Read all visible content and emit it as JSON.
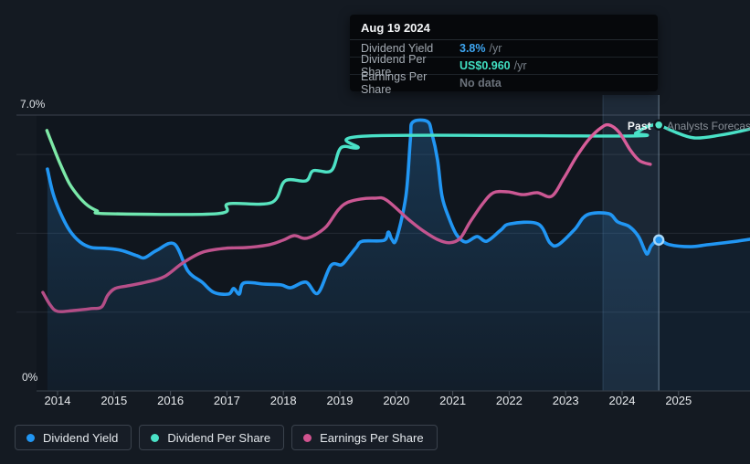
{
  "tooltip": {
    "date": "Aug 19 2024",
    "rows": [
      {
        "label": "Dividend Yield",
        "value": "3.8%",
        "suffix": "/yr",
        "color": "#3ea6f2"
      },
      {
        "label": "Dividend Per Share",
        "value": "US$0.960",
        "suffix": "/yr",
        "color": "#41e0c2"
      },
      {
        "label": "Earnings Per Share",
        "value": "No data",
        "suffix": "",
        "color": "#6b727b"
      }
    ]
  },
  "legend": {
    "items": [
      {
        "label": "Dividend Yield",
        "color": "#2196f3"
      },
      {
        "label": "Dividend Per Share",
        "color": "#4ae1c6"
      },
      {
        "label": "Earnings Per Share",
        "color": "#d1538f"
      }
    ]
  },
  "chart_data": {
    "type": "line",
    "title": "",
    "past_label": "Past",
    "forecast_label": "Analysts Forecasts",
    "x_ticks": [
      2014,
      2015,
      2016,
      2017,
      2018,
      2019,
      2020,
      2021,
      2022,
      2023,
      2024,
      2025
    ],
    "ylim": [
      0,
      7
    ],
    "y_axis_labels": [
      {
        "value": 7.0,
        "label": "7.0%"
      },
      {
        "value": 0,
        "label": "0%"
      }
    ],
    "y_gridlines": [
      2,
      4,
      6,
      7
    ],
    "grid": true,
    "legend_position": "bottom-left",
    "past_divider_x": 2024.65,
    "highlight_band": {
      "start": 2023.66,
      "end": 2024.65
    },
    "series": [
      {
        "name": "Dividend Yield",
        "unit": "%",
        "color": "#2196f3",
        "style": "area",
        "points": [
          [
            2013.82,
            5.63
          ],
          [
            2013.92,
            5.01
          ],
          [
            2014.05,
            4.52
          ],
          [
            2014.21,
            4.08
          ],
          [
            2014.4,
            3.78
          ],
          [
            2014.6,
            3.64
          ],
          [
            2014.84,
            3.62
          ],
          [
            2015.12,
            3.57
          ],
          [
            2015.41,
            3.43
          ],
          [
            2015.54,
            3.38
          ],
          [
            2015.76,
            3.57
          ],
          [
            2016.07,
            3.73
          ],
          [
            2016.31,
            3.04
          ],
          [
            2016.56,
            2.76
          ],
          [
            2016.77,
            2.5
          ],
          [
            2017.03,
            2.46
          ],
          [
            2017.12,
            2.6
          ],
          [
            2017.22,
            2.46
          ],
          [
            2017.3,
            2.74
          ],
          [
            2017.67,
            2.71
          ],
          [
            2017.96,
            2.69
          ],
          [
            2018.13,
            2.62
          ],
          [
            2018.4,
            2.76
          ],
          [
            2018.61,
            2.48
          ],
          [
            2018.84,
            3.18
          ],
          [
            2019.03,
            3.2
          ],
          [
            2019.16,
            3.41
          ],
          [
            2019.29,
            3.64
          ],
          [
            2019.4,
            3.8
          ],
          [
            2019.78,
            3.82
          ],
          [
            2019.86,
            4.03
          ],
          [
            2019.92,
            3.85
          ],
          [
            2020.0,
            3.85
          ],
          [
            2020.17,
            4.94
          ],
          [
            2020.25,
            6.4
          ],
          [
            2020.29,
            6.82
          ],
          [
            2020.55,
            6.84
          ],
          [
            2020.63,
            6.54
          ],
          [
            2020.73,
            5.87
          ],
          [
            2020.81,
            4.94
          ],
          [
            2020.93,
            4.4
          ],
          [
            2021.07,
            3.96
          ],
          [
            2021.23,
            3.78
          ],
          [
            2021.43,
            3.92
          ],
          [
            2021.6,
            3.8
          ],
          [
            2021.85,
            4.08
          ],
          [
            2022.01,
            4.24
          ],
          [
            2022.51,
            4.24
          ],
          [
            2022.72,
            3.76
          ],
          [
            2022.87,
            3.71
          ],
          [
            2023.16,
            4.1
          ],
          [
            2023.38,
            4.47
          ],
          [
            2023.76,
            4.5
          ],
          [
            2023.92,
            4.29
          ],
          [
            2024.13,
            4.17
          ],
          [
            2024.29,
            3.92
          ],
          [
            2024.4,
            3.57
          ],
          [
            2024.45,
            3.48
          ],
          [
            2024.52,
            3.69
          ],
          [
            2024.65,
            3.83
          ],
          [
            2024.84,
            3.71
          ],
          [
            2025.2,
            3.66
          ],
          [
            2025.52,
            3.71
          ],
          [
            2025.93,
            3.78
          ],
          [
            2026.27,
            3.85
          ]
        ]
      },
      {
        "name": "Dividend Per Share",
        "unit": "chart-scale (US$0.960 /yr at marker)",
        "color": "#4ae1c6",
        "style": "line",
        "points": [
          [
            2013.81,
            6.61
          ],
          [
            2013.92,
            6.21
          ],
          [
            2014.05,
            5.75
          ],
          [
            2014.21,
            5.26
          ],
          [
            2014.37,
            4.94
          ],
          [
            2014.53,
            4.71
          ],
          [
            2014.7,
            4.57
          ],
          [
            2014.86,
            4.5
          ],
          [
            2016.83,
            4.5
          ],
          [
            2017.03,
            4.75
          ],
          [
            2017.79,
            4.78
          ],
          [
            2018.03,
            5.33
          ],
          [
            2018.4,
            5.33
          ],
          [
            2018.53,
            5.59
          ],
          [
            2018.85,
            5.59
          ],
          [
            2019.02,
            6.17
          ],
          [
            2019.32,
            6.17
          ],
          [
            2019.49,
            6.47
          ],
          [
            2024.06,
            6.47
          ],
          [
            2024.24,
            6.54
          ],
          [
            2024.4,
            6.68
          ],
          [
            2024.55,
            6.75
          ],
          [
            2024.65,
            6.75
          ],
          [
            2024.92,
            6.58
          ],
          [
            2025.28,
            6.42
          ],
          [
            2025.73,
            6.49
          ],
          [
            2026.06,
            6.58
          ],
          [
            2026.27,
            6.65
          ]
        ]
      },
      {
        "name": "Earnings Per Share",
        "unit": "chart-scale (No data after Aug 19 2024)",
        "color": "#d1538f",
        "style": "line",
        "points": [
          [
            2013.74,
            2.5
          ],
          [
            2013.87,
            2.18
          ],
          [
            2014.0,
            2.02
          ],
          [
            2014.28,
            2.04
          ],
          [
            2014.6,
            2.09
          ],
          [
            2014.78,
            2.13
          ],
          [
            2014.89,
            2.43
          ],
          [
            2015.02,
            2.6
          ],
          [
            2015.25,
            2.67
          ],
          [
            2015.57,
            2.76
          ],
          [
            2015.89,
            2.9
          ],
          [
            2016.22,
            3.25
          ],
          [
            2016.57,
            3.52
          ],
          [
            2016.98,
            3.62
          ],
          [
            2017.35,
            3.64
          ],
          [
            2017.75,
            3.71
          ],
          [
            2018.0,
            3.83
          ],
          [
            2018.19,
            3.94
          ],
          [
            2018.38,
            3.87
          ],
          [
            2018.56,
            3.96
          ],
          [
            2018.76,
            4.17
          ],
          [
            2018.97,
            4.59
          ],
          [
            2019.13,
            4.78
          ],
          [
            2019.37,
            4.87
          ],
          [
            2019.61,
            4.89
          ],
          [
            2019.82,
            4.85
          ],
          [
            2020.21,
            4.36
          ],
          [
            2020.46,
            4.08
          ],
          [
            2020.72,
            3.85
          ],
          [
            2020.94,
            3.76
          ],
          [
            2021.13,
            3.87
          ],
          [
            2021.3,
            4.27
          ],
          [
            2021.52,
            4.73
          ],
          [
            2021.72,
            5.03
          ],
          [
            2021.98,
            5.05
          ],
          [
            2022.24,
            4.98
          ],
          [
            2022.5,
            5.03
          ],
          [
            2022.75,
            4.94
          ],
          [
            2022.96,
            5.38
          ],
          [
            2023.19,
            5.94
          ],
          [
            2023.42,
            6.4
          ],
          [
            2023.63,
            6.68
          ],
          [
            2023.77,
            6.75
          ],
          [
            2023.95,
            6.56
          ],
          [
            2024.15,
            6.1
          ],
          [
            2024.31,
            5.84
          ],
          [
            2024.5,
            5.75
          ]
        ]
      }
    ],
    "markers": [
      {
        "series": "Dividend Yield",
        "x": 2024.65,
        "y": 3.83,
        "fill": "#2196f3",
        "ring": "#a9d7f7"
      },
      {
        "series": "Dividend Per Share",
        "x": 2024.65,
        "y": 6.75,
        "fill": "#55e4c8",
        "ring": "#0e141b"
      }
    ]
  }
}
